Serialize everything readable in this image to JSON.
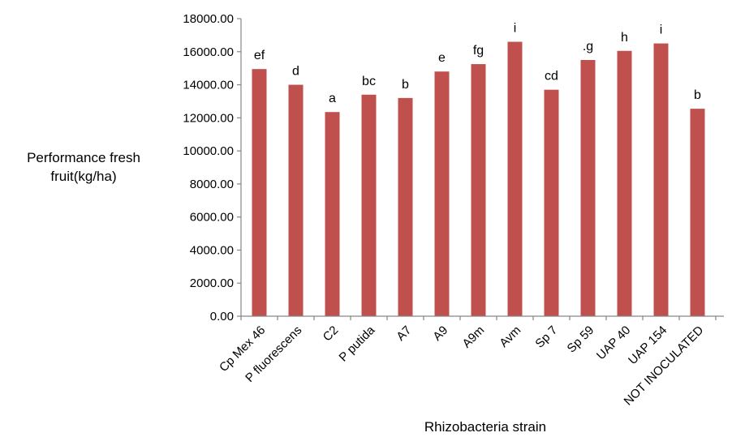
{
  "chart_data": {
    "type": "bar",
    "title": "",
    "ylabel_lines": [
      "Performance fresh",
      "fruit(kg/ha)"
    ],
    "xlabel": "Rhizobacteria strain",
    "ylim": [
      0,
      18000
    ],
    "yticks": [
      "0.00",
      "2000.00",
      "4000.00",
      "6000.00",
      "8000.00",
      "10000.00",
      "12000.00",
      "14000.00",
      "16000.00",
      "18000.00"
    ],
    "categories": [
      "Cp Mex 46",
      "P fluorescens",
      "C2",
      "P putida",
      "A7",
      "A9",
      "A9m",
      "Avm",
      "Sp 7",
      "Sp 59",
      "UAP 40",
      "UAP 154",
      "NOT INOCULATED"
    ],
    "values": [
      14950,
      14000,
      12350,
      13400,
      13200,
      14800,
      15250,
      16600,
      13700,
      15500,
      16050,
      16500,
      12550
    ],
    "significance_letters": [
      "ef",
      "d",
      "a",
      "bc",
      "b",
      "e",
      "fg",
      "i",
      "cd",
      ".g",
      "h",
      "i",
      "b"
    ],
    "bar_color": "#C0504D",
    "axis_color": "#868686",
    "grid": false,
    "legend": "none"
  }
}
